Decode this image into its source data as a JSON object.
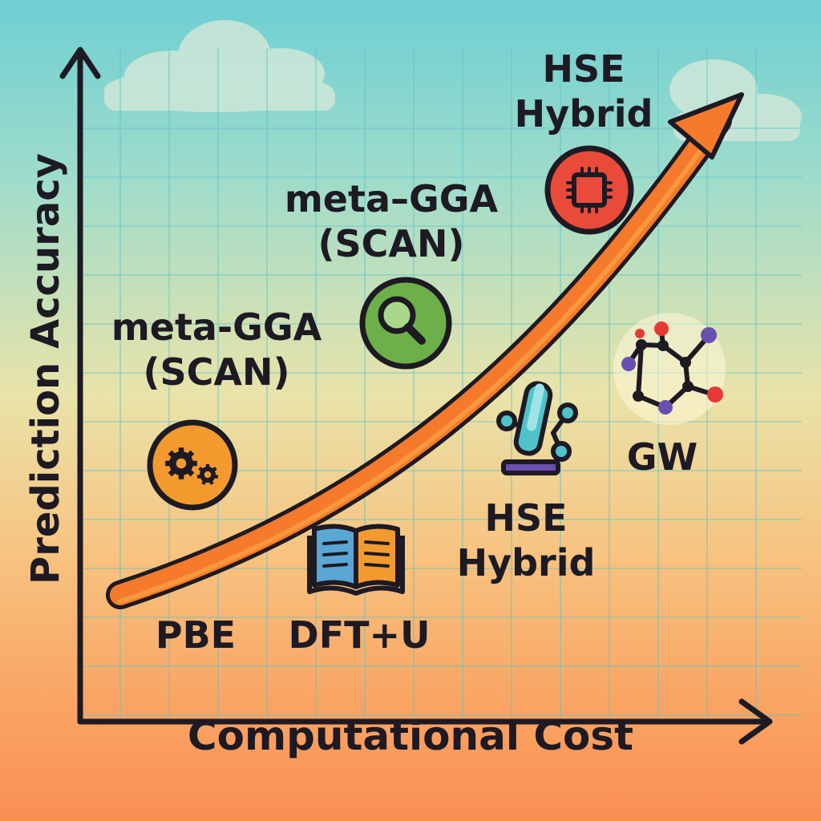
{
  "diagram": {
    "y_axis_label": "Prediction Accuracy",
    "x_axis_label": "Computational Cost",
    "methods": [
      {
        "id": "pbe",
        "lines": [
          "PBE"
        ],
        "icon": "gear-icon",
        "circle_color": "#f39a2e"
      },
      {
        "id": "meta-gga-left",
        "lines": [
          "meta-GGA",
          "(SCAN)"
        ],
        "icon": "none"
      },
      {
        "id": "meta-gga-center",
        "lines": [
          "meta–GGA",
          "(SCAN)"
        ],
        "icon": "magnifier-icon",
        "circle_color": "#6db04a"
      },
      {
        "id": "dft-u",
        "lines": [
          "DFT+U"
        ],
        "icon": "open-book-icon",
        "book_colors": [
          "#5aa7d6",
          "#f39a2e"
        ]
      },
      {
        "id": "hse-lower",
        "lines": [
          "HSE",
          "Hybrid"
        ],
        "icon": "microscope-icon",
        "icon_color": "#4fc3c9"
      },
      {
        "id": "hse-top",
        "lines": [
          "HSE",
          "Hybrid"
        ],
        "icon": "cpu-chip-icon",
        "circle_color": "#ea4a3a"
      },
      {
        "id": "gw",
        "lines": [
          "GW"
        ],
        "icon": "molecule-icon",
        "node_colors": [
          "#e53935",
          "#6a4fb1",
          "#1d1a24"
        ]
      }
    ],
    "trend_arrow_color": "#f57a2b",
    "grid": true
  }
}
